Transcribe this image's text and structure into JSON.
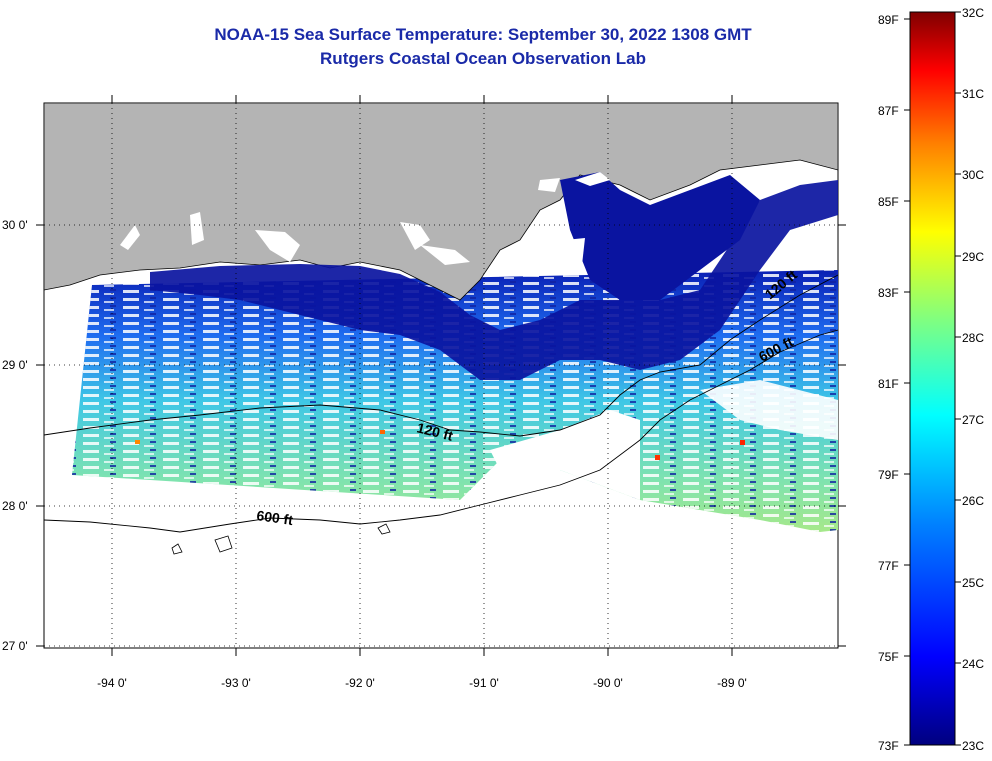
{
  "title": {
    "line1": "NOAA-15 Sea Surface Temperature:  September 30, 2022 1308 GMT",
    "line2": "Rutgers Coastal Ocean Observation Lab"
  },
  "map": {
    "lon_labels": [
      "-94 0'",
      "-93 0'",
      "-92 0'",
      "-91 0'",
      "-90 0'",
      "-89 0'"
    ],
    "lat_labels": [
      "30 0'",
      "29 0'",
      "28 0'",
      "27 0'"
    ],
    "contour_labels": [
      {
        "text": "120 ft",
        "name": "contour-120ft-west"
      },
      {
        "text": "600 ft",
        "name": "contour-600ft-west"
      },
      {
        "text": "600 ft",
        "name": "contour-600ft-east"
      },
      {
        "text": "120 ft",
        "name": "contour-120ft-east"
      }
    ],
    "land_color": "#b4b4b4",
    "gridline": "dotted"
  },
  "colorbar": {
    "fahrenheit": [
      "89F",
      "87F",
      "85F",
      "83F",
      "81F",
      "79F",
      "77F",
      "75F",
      "73F"
    ],
    "celsius": [
      "32C",
      "31C",
      "30C",
      "29C",
      "28C",
      "27C",
      "26C",
      "25C",
      "24C",
      "23C"
    ],
    "stops": [
      "#00007f",
      "#0000ff",
      "#0080ff",
      "#00ffff",
      "#80ff80",
      "#ffff00",
      "#ff8000",
      "#ff0000",
      "#7f0000"
    ]
  }
}
